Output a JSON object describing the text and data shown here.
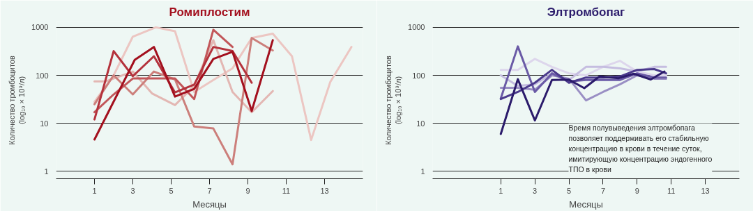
{
  "chart_data": [
    {
      "type": "line",
      "title": "Ромиплостим",
      "xlabel": "Месяцы",
      "ylabel": "Количество тромбоцитов\n(log₁₀ × 10⁹/л)",
      "log": true,
      "grid": true,
      "xlim": [
        -1,
        15
      ],
      "xticks": [
        1,
        3,
        5,
        7,
        9,
        11,
        13
      ],
      "ylim": [
        0.7,
        1300
      ],
      "yticks": [
        1,
        10,
        100,
        1000
      ],
      "series": [
        {
          "color": "#ecc6c2",
          "x": [
            1,
            2,
            3,
            4.2,
            5.2,
            6.2,
            7.2,
            8.2,
            9.2,
            10.3,
            11.3,
            12.3,
            13.3,
            14.4
          ],
          "values": [
            28,
            100,
            640,
            1000,
            830,
            45,
            80,
            140,
            600,
            740,
            250,
            4.5,
            73,
            390
          ]
        },
        {
          "color": "#e3b7b3",
          "x": [
            1,
            1.6,
            3,
            4,
            5.2,
            6.2,
            7.2,
            8.2,
            9.2,
            10.3
          ],
          "values": [
            75,
            75,
            120,
            42,
            24,
            60,
            540,
            45,
            17,
            47
          ]
        },
        {
          "color": "#cc7f7b",
          "x": [
            1,
            2,
            3,
            4.1,
            5.2,
            6.2,
            7.2,
            8.2,
            9.2,
            10.3
          ],
          "values": [
            25,
            100,
            40,
            120,
            82,
            8.6,
            7.8,
            1.4,
            600,
            330
          ]
        },
        {
          "color": "#c2575a",
          "x": [
            1,
            2,
            3,
            4,
            5.2,
            6.2,
            7.2,
            8.2
          ],
          "values": [
            17,
            40,
            86,
            86,
            86,
            32,
            890,
            390
          ]
        },
        {
          "color": "#b4323c",
          "x": [
            1,
            2,
            3,
            4.1,
            5.2,
            6.2,
            7.2,
            8.2,
            9.2
          ],
          "values": [
            12,
            320,
            96,
            250,
            44,
            64,
            390,
            320,
            70
          ]
        },
        {
          "color": "#a3101e",
          "x": [
            1,
            3.1,
            4.1,
            5.2,
            6.2,
            7.2,
            8.2,
            9.2,
            10.3
          ],
          "values": [
            4.6,
            210,
            390,
            36,
            52,
            220,
            310,
            18,
            540
          ]
        }
      ]
    },
    {
      "type": "line",
      "title": "Элтромбопаг",
      "xlabel": "Месяцы",
      "ylabel": "Количество тромбоцитов\n(log₁₀ × 10⁹/л)",
      "log": true,
      "grid": true,
      "xlim": [
        -3,
        15
      ],
      "xticks": [
        1,
        3,
        5,
        7,
        9,
        11,
        13
      ],
      "ylim": [
        0.7,
        1300
      ],
      "yticks": [
        1,
        10,
        100,
        1000
      ],
      "annotations": [
        "Время полувыведения элтромбопага\nпозволяет поддерживать его стабильную\nконцентрацию в крови в течение суток,\nимитирующую концентрацию эндогенного\nТПО в крови"
      ],
      "series": [
        {
          "color": "#ddd6ec",
          "x": [
            1,
            2,
            3,
            4,
            5,
            6,
            7,
            8,
            9,
            10,
            10.7
          ],
          "values": [
            130,
            130,
            220,
            150,
            110,
            100,
            150,
            200,
            120,
            100,
            100
          ]
        },
        {
          "color": "#c5bde0",
          "x": [
            1,
            2,
            3,
            4,
            5,
            6,
            7,
            8,
            9,
            10,
            10.7
          ],
          "values": [
            100,
            60,
            65,
            110,
            80,
            150,
            150,
            140,
            120,
            150,
            150
          ]
        },
        {
          "color": "#9a8fc4",
          "x": [
            1,
            2,
            3,
            4,
            5,
            6,
            7,
            8,
            9,
            10,
            10.7
          ],
          "values": [
            55,
            55,
            50,
            100,
            85,
            30,
            45,
            65,
            100,
            85,
            85
          ]
        },
        {
          "color": "#6a5aa6",
          "x": [
            1,
            2,
            3,
            4,
            5,
            6,
            7,
            8,
            9,
            10,
            10.7
          ],
          "values": [
            33,
            400,
            45,
            110,
            75,
            80,
            80,
            80,
            110,
            90,
            90
          ]
        },
        {
          "color": "#4b3a8c",
          "x": [
            1,
            2,
            3,
            4,
            5,
            6,
            7,
            8,
            9,
            10,
            10.7
          ],
          "values": [
            32,
            45,
            70,
            130,
            70,
            90,
            90,
            95,
            130,
            135,
            110
          ]
        },
        {
          "color": "#2b1b6b",
          "x": [
            1,
            2,
            3,
            4,
            5,
            5.9,
            6.8,
            7.9,
            8.8,
            9.8,
            10.6
          ],
          "values": [
            6,
            83,
            11.5,
            80,
            81,
            54,
            95,
            87,
            108,
            82,
            120
          ]
        }
      ]
    }
  ]
}
